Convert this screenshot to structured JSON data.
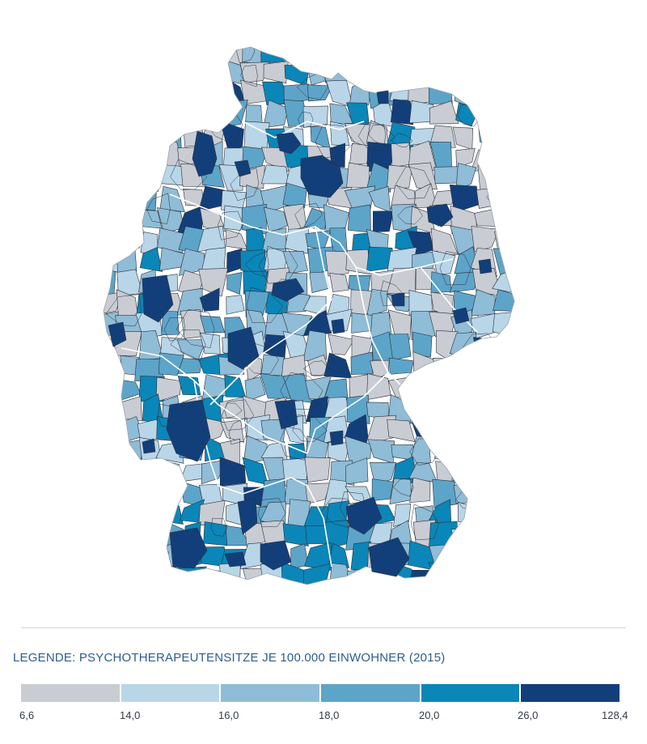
{
  "legend": {
    "title": "LEGENDE: PSYCHOTHERAPEUTENSITZE JE 100.000 EINWOHNER (2015)",
    "classes": [
      {
        "color": "#c9ccd3"
      },
      {
        "color": "#b8d6e8"
      },
      {
        "color": "#8fbcd6"
      },
      {
        "color": "#5da4c9"
      },
      {
        "color": "#0b86b8"
      },
      {
        "color": "#123f7a"
      }
    ],
    "breaks": [
      "6,6",
      "14,0",
      "16,0",
      "18,0",
      "20,0",
      "26,0",
      "128,4"
    ]
  },
  "colors": {
    "state_border": "#ffffff",
    "district_border": "#2b2f3a",
    "title_color": "#2f5c8f"
  }
}
